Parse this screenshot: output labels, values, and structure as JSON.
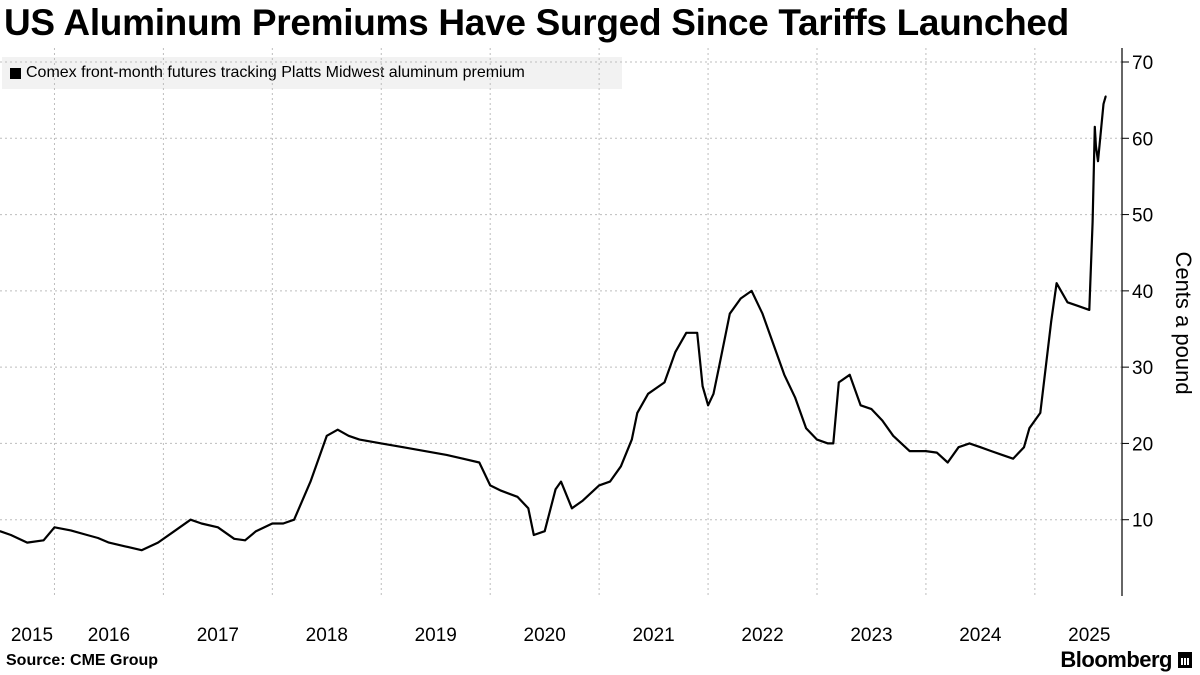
{
  "title": "US Aluminum Premiums Have Surged Since Tariffs Launched",
  "legend": {
    "label": "Comex front-month futures tracking Platts Midwest aluminum premium",
    "color": "#000000"
  },
  "source": "Source: CME Group",
  "brand": "Bloomberg",
  "chart_data": {
    "type": "line",
    "title": "US Aluminum Premiums Have Surged Since Tariffs Launched",
    "xlabel": "",
    "ylabel": "Cents a pound",
    "ylim": [
      0,
      70
    ],
    "xlim": [
      2015.0,
      2025.3
    ],
    "yticks": [
      10,
      20,
      30,
      40,
      50,
      60,
      70
    ],
    "xticks": [
      "2015",
      "2016",
      "2017",
      "2018",
      "2019",
      "2020",
      "2021",
      "2022",
      "2023",
      "2024",
      "2025"
    ],
    "grid": true,
    "legend_position": "top-left",
    "series": [
      {
        "name": "Comex front-month futures tracking Platts Midwest aluminum premium",
        "color": "#000000",
        "x": [
          2015.0,
          2015.1,
          2015.25,
          2015.4,
          2015.5,
          2015.65,
          2015.8,
          2015.9,
          2016.0,
          2016.15,
          2016.3,
          2016.45,
          2016.6,
          2016.75,
          2016.85,
          2017.0,
          2017.15,
          2017.25,
          2017.35,
          2017.5,
          2017.6,
          2017.7,
          2017.85,
          2018.0,
          2018.1,
          2018.2,
          2018.3,
          2018.5,
          2018.7,
          2018.9,
          2019.1,
          2019.25,
          2019.4,
          2019.5,
          2019.6,
          2019.75,
          2019.85,
          2019.9,
          2020.0,
          2020.1,
          2020.15,
          2020.25,
          2020.35,
          2020.5,
          2020.6,
          2020.7,
          2020.8,
          2020.85,
          2020.95,
          2021.1,
          2021.2,
          2021.3,
          2021.4,
          2021.45,
          2021.5,
          2021.55,
          2021.6,
          2021.7,
          2021.8,
          2021.9,
          2022.0,
          2022.1,
          2022.2,
          2022.3,
          2022.4,
          2022.5,
          2022.6,
          2022.65,
          2022.7,
          2022.8,
          2022.9,
          2023.0,
          2023.1,
          2023.2,
          2023.35,
          2023.5,
          2023.6,
          2023.7,
          2023.8,
          2023.9,
          2024.0,
          2024.1,
          2024.2,
          2024.3,
          2024.4,
          2024.45,
          2024.55,
          2024.65,
          2024.7,
          2024.8,
          2024.9,
          2025.0,
          2025.03,
          2025.05,
          2025.06,
          2025.08,
          2025.1,
          2025.13,
          2025.15
        ],
        "values": [
          8.5,
          8.0,
          7.0,
          7.3,
          9.0,
          8.6,
          8.0,
          7.6,
          7.0,
          6.5,
          6.0,
          7.0,
          8.5,
          10.0,
          9.5,
          9.0,
          7.5,
          7.3,
          8.5,
          9.5,
          9.5,
          10.0,
          15.0,
          21.0,
          21.8,
          21.0,
          20.5,
          20.0,
          19.5,
          19.0,
          18.5,
          18.0,
          17.5,
          14.5,
          13.8,
          13.0,
          11.5,
          8.0,
          8.5,
          14.0,
          15.0,
          11.5,
          12.5,
          14.5,
          15.0,
          17.0,
          20.5,
          24.0,
          26.5,
          28.0,
          32.0,
          34.5,
          34.5,
          27.5,
          25.0,
          26.5,
          30.0,
          37.0,
          39.0,
          40.0,
          37.0,
          33.0,
          29.0,
          26.0,
          22.0,
          20.5,
          20.0,
          20.0,
          28.0,
          29.0,
          25.0,
          24.5,
          23.0,
          21.0,
          19.0,
          19.0,
          18.8,
          17.5,
          19.5,
          20.0,
          19.5,
          19.0,
          18.5,
          18.0,
          19.5,
          22.0,
          24.0,
          36.0,
          41.0,
          38.5,
          38.0,
          37.5,
          49.0,
          61.5,
          59.0,
          57.0,
          60.0,
          64.5,
          65.5
        ]
      }
    ]
  }
}
